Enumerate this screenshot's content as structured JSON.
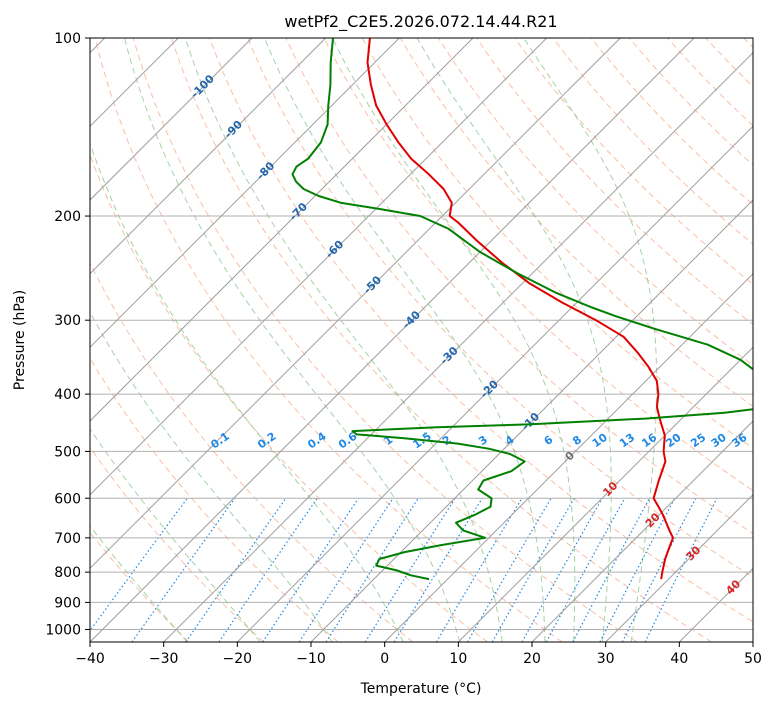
{
  "chart_data": {
    "type": "line",
    "subtype": "skew-t-log-p",
    "title": "wetPf2_C2E5.2026.072.14.44.R21",
    "xlabel": "Temperature (°C)",
    "ylabel": "Pressure (hPa)",
    "xlim": [
      -40,
      50
    ],
    "ylim": [
      1050,
      100
    ],
    "y_scale": "log",
    "x_ticks": [
      -40,
      -30,
      -20,
      -10,
      0,
      10,
      20,
      30,
      40,
      50
    ],
    "y_ticks": [
      100,
      200,
      300,
      400,
      500,
      600,
      700,
      800,
      900,
      1000
    ],
    "grid": true,
    "colors": {
      "temperature": "#e00000",
      "dewpoint": "#008000",
      "isotherm": "#9e9e9e",
      "dry_adiabat": "#f4a582",
      "moist_adiabat": "#7fbf7f",
      "mixing_ratio": "#1e88e5",
      "isotherm_label_negative": "#2166ac",
      "isotherm_label_positive": "#d62728",
      "isotherm_label_zero": "#707070"
    },
    "series": [
      {
        "key": "temperature",
        "pressure": [
          822,
          800,
          760,
          720,
          700,
          680,
          640,
          620,
          600,
          560,
          520,
          500,
          470,
          440,
          420,
          400,
          380,
          360,
          340,
          320,
          300,
          280,
          260,
          240,
          220,
          205,
          200,
          190,
          180,
          170,
          160,
          150,
          140,
          130,
          120,
          110,
          100
        ],
        "values": [
          29.0,
          28.2,
          26.8,
          25.6,
          25.0,
          23.5,
          20.5,
          18.8,
          17.0,
          15.3,
          13.6,
          12.0,
          10.0,
          7.0,
          5.0,
          3.5,
          1.5,
          -1.5,
          -5.0,
          -9.0,
          -15.0,
          -22.0,
          -29.0,
          -35.5,
          -42.0,
          -47.0,
          -49.0,
          -50.5,
          -53.5,
          -57.5,
          -62.0,
          -66.0,
          -70.0,
          -74.0,
          -77.5,
          -81.0,
          -84.0
        ]
      },
      {
        "key": "dewpoint",
        "pressure": [
          822,
          810,
          795,
          780,
          760,
          740,
          720,
          700,
          680,
          660,
          640,
          620,
          600,
          580,
          560,
          540,
          520,
          505,
          495,
          485,
          475,
          468,
          462,
          455,
          450,
          440,
          430,
          420,
          410,
          400,
          390,
          370,
          350,
          330,
          310,
          295,
          285,
          270,
          250,
          230,
          210,
          200,
          195,
          190,
          185,
          180,
          175,
          170,
          165,
          160,
          150,
          140,
          130,
          120,
          110,
          100
        ],
        "values": [
          -2.5,
          -5.5,
          -8.0,
          -11.5,
          -12.0,
          -9.5,
          -5.5,
          -0.5,
          -4.5,
          -6.5,
          -5.0,
          -4.0,
          -5.0,
          -8.0,
          -8.5,
          -6.0,
          -5.5,
          -8.5,
          -12.0,
          -17.0,
          -25.0,
          -32.0,
          -33.0,
          -22.0,
          -10.0,
          5.0,
          15.0,
          21.0,
          23.5,
          23.0,
          20.5,
          14.5,
          10.0,
          3.5,
          -6.0,
          -13.0,
          -17.5,
          -24.0,
          -32.0,
          -40.0,
          -47.5,
          -53.0,
          -59.0,
          -65.5,
          -69.5,
          -72.5,
          -74.5,
          -76.0,
          -76.5,
          -76.0,
          -76.5,
          -78.0,
          -80.5,
          -83.0,
          -86.0,
          -89.0
        ]
      }
    ],
    "isotherm_labels": [
      {
        "value": "-100",
        "t": -100,
        "p": 121
      },
      {
        "value": "-90",
        "t": -90,
        "p": 143
      },
      {
        "value": "-80",
        "t": -80,
        "p": 168
      },
      {
        "value": "-70",
        "t": -70,
        "p": 197
      },
      {
        "value": "-60",
        "t": -60,
        "p": 228
      },
      {
        "value": "-50",
        "t": -50,
        "p": 262
      },
      {
        "value": "-40",
        "t": -40,
        "p": 300
      },
      {
        "value": "-30",
        "t": -30,
        "p": 345
      },
      {
        "value": "-20",
        "t": -20,
        "p": 393
      },
      {
        "value": "-10",
        "t": -10,
        "p": 446
      },
      {
        "value": "0",
        "t": 0,
        "p": 510
      },
      {
        "value": "10",
        "t": 10,
        "p": 580
      },
      {
        "value": "20",
        "t": 20,
        "p": 655
      },
      {
        "value": "30",
        "t": 30,
        "p": 745
      },
      {
        "value": "40",
        "t": 40,
        "p": 850
      }
    ],
    "mixing_ratio_labels": [
      "0.1",
      "0.2",
      "0.4",
      "0.6",
      "1",
      "1.5",
      "2",
      "3",
      "4",
      "6",
      "8",
      "10",
      "13",
      "16",
      "20",
      "25",
      "30",
      "36"
    ],
    "mixing_ratio_values": [
      0.1,
      0.2,
      0.4,
      0.6,
      1,
      1.5,
      2,
      3,
      4,
      6,
      8,
      10,
      13,
      16,
      20,
      25,
      30,
      36
    ]
  }
}
